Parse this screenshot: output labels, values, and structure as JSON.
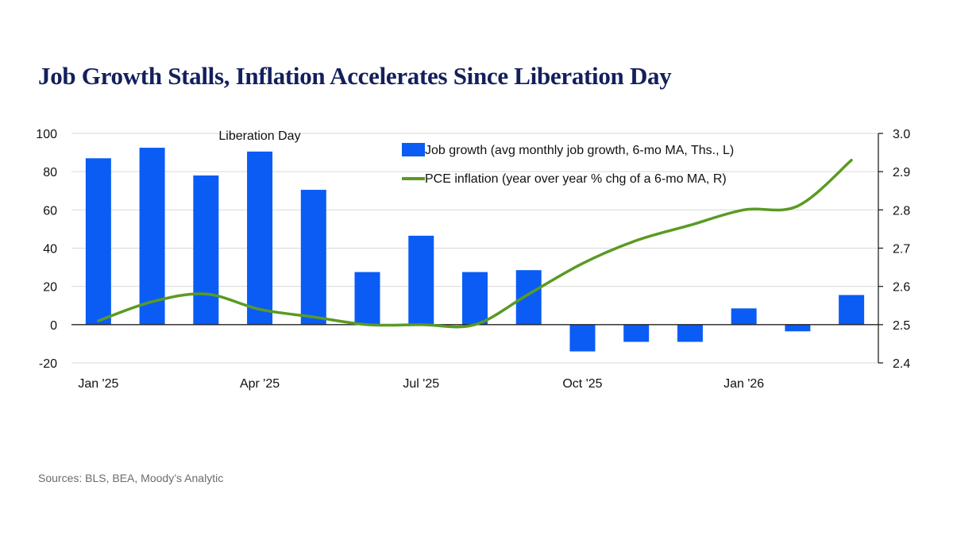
{
  "title": "Job Growth Stalls, Inflation Accelerates Since Liberation Day",
  "source": "Sources: BLS, BEA, Moody’s Analytic",
  "chart_data": {
    "type": "bar+line",
    "annotation": "Liberation Day",
    "x_tick_labels": [
      "Jan '25",
      "Apr '25",
      "Jul '25",
      "Oct '25",
      "Jan '26"
    ],
    "months": [
      "2025-01",
      "2025-02",
      "2025-03",
      "2025-04",
      "2025-05",
      "2025-06",
      "2025-07",
      "2025-08",
      "2025-09",
      "2025-10",
      "2025-11",
      "2025-12",
      "2026-01",
      "2026-02",
      "2026-03"
    ],
    "left_axis": {
      "ylim": [
        -20,
        100
      ],
      "ticks": [
        100,
        80,
        60,
        40,
        20,
        0,
        -20
      ]
    },
    "right_axis": {
      "ylim": [
        2.4,
        3.0
      ],
      "ticks": [
        "3.0",
        "2.9",
        "2.8",
        "2.7",
        "2.6",
        "2.5",
        "2.4"
      ]
    },
    "series": [
      {
        "name": "Job growth (avg monthly job growth, 6-mo MA, Ths., L)",
        "type": "bar",
        "axis": "left",
        "color": "#0a5cf5",
        "values": [
          87,
          92.5,
          78,
          90.5,
          70.5,
          27.5,
          46.5,
          27.5,
          28.5,
          -14,
          -9,
          -9,
          8.5,
          -3.5,
          15.5
        ]
      },
      {
        "name": "PCE inflation (year over year % chg of a 6-mo MA, R)",
        "type": "line",
        "axis": "right",
        "color": "#5a9a22",
        "values": [
          2.51,
          2.56,
          2.58,
          2.54,
          2.52,
          2.5,
          2.5,
          2.5,
          2.58,
          2.66,
          2.72,
          2.76,
          2.8,
          2.81,
          2.93
        ]
      }
    ],
    "grid": "horizontal"
  }
}
